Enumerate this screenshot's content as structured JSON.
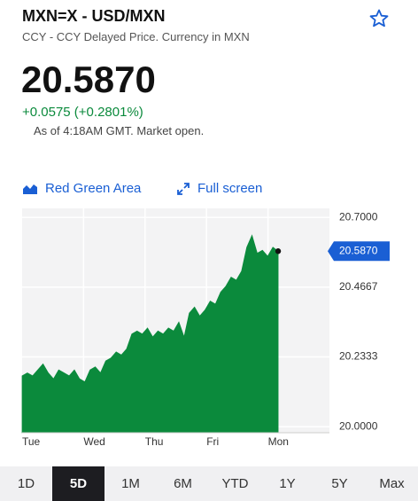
{
  "header": {
    "title": "MXN=X - USD/MXN",
    "subtitle": "CCY - CCY Delayed Price. Currency in MXN"
  },
  "quote": {
    "price": "20.5870",
    "change": "+0.0575 (+0.2801%)",
    "as_of": "As of 4:18AM GMT. Market open."
  },
  "controls": {
    "chart_type": "Red Green Area",
    "full_screen": "Full screen"
  },
  "chart_data": {
    "type": "area",
    "color": "#0b8a3c",
    "grid": true,
    "x": [
      0,
      0.085,
      0.17,
      0.255,
      0.34,
      0.425,
      0.51,
      0.595,
      0.68,
      0.765,
      0.85,
      0.935,
      1.02,
      1.105,
      1.19,
      1.275,
      1.36,
      1.445,
      1.53,
      1.615,
      1.7,
      1.785,
      1.87,
      1.955,
      2.04,
      2.125,
      2.21,
      2.295,
      2.38,
      2.465,
      2.55,
      2.635,
      2.72,
      2.805,
      2.89,
      2.975,
      3.06,
      3.145,
      3.23,
      3.315,
      3.4,
      3.485,
      3.57,
      3.655,
      3.74,
      3.825,
      3.91,
      3.995,
      4.08,
      4.165
    ],
    "values": [
      20.17,
      20.18,
      20.17,
      20.19,
      20.21,
      20.18,
      20.16,
      20.19,
      20.18,
      20.17,
      20.19,
      20.16,
      20.15,
      20.19,
      20.2,
      20.18,
      20.22,
      20.23,
      20.25,
      20.24,
      20.26,
      20.31,
      20.32,
      20.31,
      20.33,
      20.3,
      20.32,
      20.31,
      20.33,
      20.32,
      20.35,
      20.3,
      20.38,
      20.4,
      20.37,
      20.39,
      20.42,
      20.41,
      20.45,
      20.47,
      20.5,
      20.49,
      20.52,
      20.6,
      20.64,
      20.58,
      20.59,
      20.57,
      20.6,
      20.587
    ],
    "xlim": [
      0,
      5
    ],
    "xticks": [
      {
        "value": 0,
        "label": "Tue"
      },
      {
        "value": 1,
        "label": "Wed"
      },
      {
        "value": 2,
        "label": "Thu"
      },
      {
        "value": 3,
        "label": "Fri"
      },
      {
        "value": 4,
        "label": "Mon"
      }
    ],
    "ylim": [
      19.98,
      20.73
    ],
    "yticks": [
      {
        "value": 20,
        "label": "20.0000"
      },
      20.2333,
      20.4667,
      {
        "value": 20.7,
        "label": "20.7000"
      }
    ]
  },
  "ranges": [
    "1D",
    "5D",
    "1M",
    "6M",
    "YTD",
    "1Y",
    "5Y",
    "Max"
  ],
  "selected_range": 1
}
